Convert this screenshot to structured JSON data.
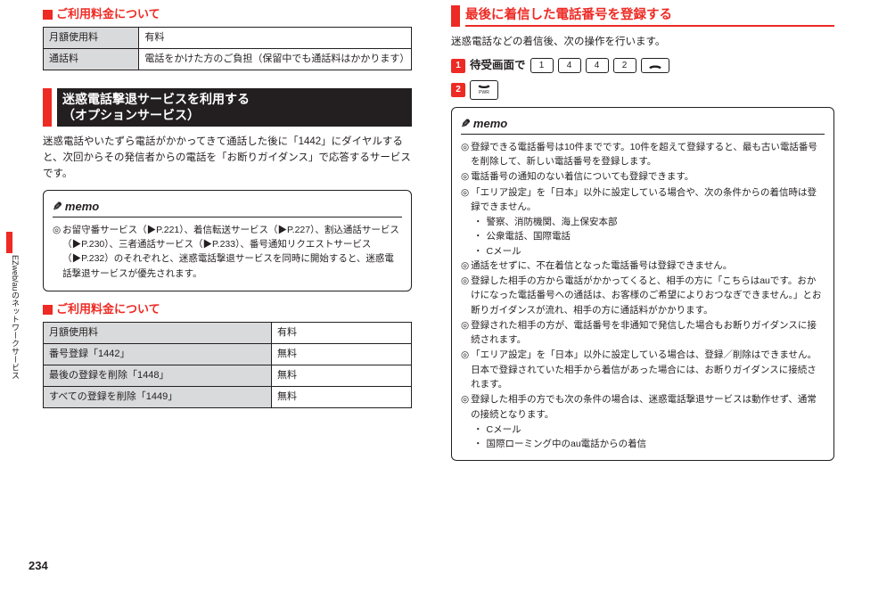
{
  "colors": {
    "accent": "#ee2a24",
    "text": "#231f20",
    "header_bg": "#d9dadb",
    "bg": "#ffffff"
  },
  "page_number": "234",
  "side_tab": "EZweb/auのネットワークサービス",
  "left": {
    "sec1_title": "ご利用料金について",
    "table1": {
      "rows": [
        [
          "月額使用料",
          "有料"
        ],
        [
          "通話料",
          "電話をかけた方のご負担（保留中でも通話料はかかります）"
        ]
      ]
    },
    "sec2_title_line1": "迷惑電話撃退サービスを利用する",
    "sec2_title_line2": "（オプションサービス）",
    "para1": "迷惑電話やいたずら電話がかかってきて通話した後に「1442」にダイヤルすると、次回からその発信者からの電話を「お断りガイダンス」で応答するサービスです。",
    "memo1": {
      "title": "memo",
      "items": [
        "お留守番サービス（▶P.221）、着信転送サービス（▶P.227）、割込通話サービス（▶P.230）、三者通話サービス（▶P.233）、番号通知リクエストサービス（▶P.232）のそれぞれと、迷惑電話撃退サービスを同時に開始すると、迷惑電話撃退サービスが優先されます。"
      ]
    },
    "sec3_title": "ご利用料金について",
    "table2": {
      "col_widths": [
        "62%",
        "38%"
      ],
      "rows": [
        [
          "月額使用料",
          "有料"
        ],
        [
          "番号登録「1442」",
          "無料"
        ],
        [
          "最後の登録を削除「1448」",
          "無料"
        ],
        [
          "すべての登録を削除「1449」",
          "無料"
        ]
      ]
    }
  },
  "right": {
    "sec1_title": "最後に着信した電話番号を登録する",
    "para1": "迷惑電話などの着信後、次の操作を行います。",
    "step1_num": "1",
    "step1_label": "待受画面で",
    "step1_keys": [
      "1",
      "4",
      "4",
      "2"
    ],
    "step1_callkey": "✆",
    "step2_num": "2",
    "step2_key_label": "PWR",
    "step2_key_icon": "⏻",
    "memo": {
      "title": "memo",
      "items": [
        {
          "t": "登録できる電話番号は10件までです。10件を超えて登録すると、最も古い電話番号を削除して、新しい電話番号を登録します。"
        },
        {
          "t": "電話番号の通知のない着信についても登録できます。"
        },
        {
          "t": "「エリア設定」を「日本」以外に設定している場合や、次の条件からの着信時は登録できません。",
          "subs": [
            "警察、消防機関、海上保安本部",
            "公衆電話、国際電話",
            "Cメール"
          ]
        },
        {
          "t": "通話をせずに、不在着信となった電話番号は登録できません。"
        },
        {
          "t": "登録した相手の方から電話がかかってくると、相手の方に「こちらはauです。おかけになった電話番号への通話は、お客様のご希望によりおつなぎできません。」とお断りガイダンスが流れ、相手の方に通話料がかかります。"
        },
        {
          "t": "登録された相手の方が、電話番号を非通知で発信した場合もお断りガイダンスに接続されます。"
        },
        {
          "t": "「エリア設定」を「日本」以外に設定している場合は、登録／削除はできません。日本で登録されていた相手から着信があった場合には、お断りガイダンスに接続されます。"
        },
        {
          "t": "登録した相手の方でも次の条件の場合は、迷惑電話撃退サービスは動作せず、通常の接続となります。",
          "subs": [
            "Cメール",
            "国際ローミング中のau電話からの着信"
          ]
        }
      ]
    }
  }
}
